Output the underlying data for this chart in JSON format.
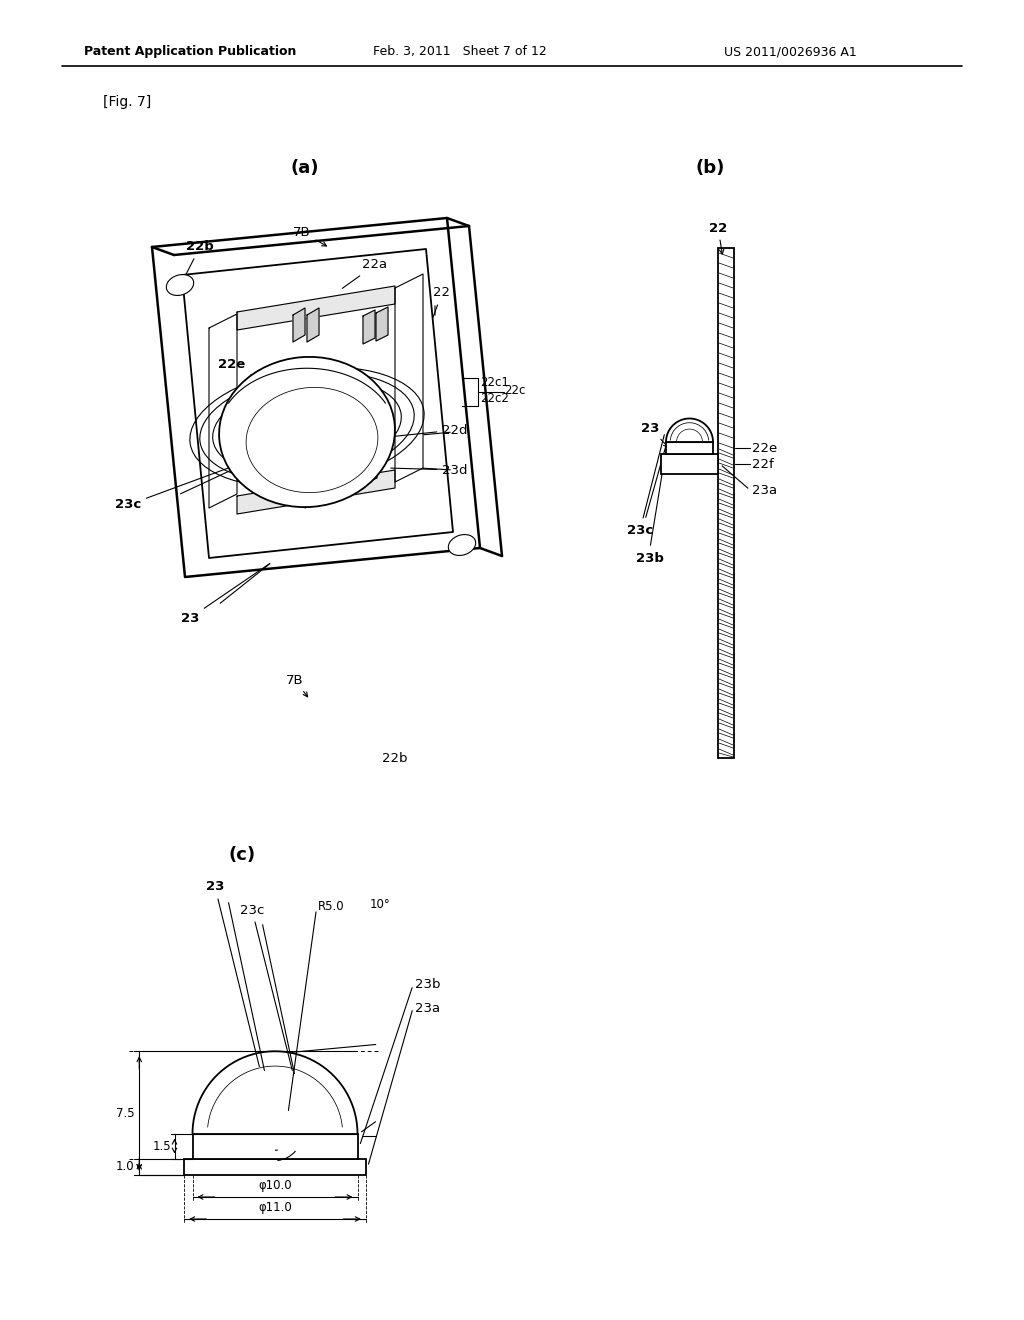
{
  "bg_color": "#ffffff",
  "text_color": "#000000",
  "line_color": "#000000",
  "header_left": "Patent Application Publication",
  "header_mid": "Feb. 3, 2011   Sheet 7 of 12",
  "header_right": "US 2011/0026936 A1",
  "fig_label": "[Fig. 7]",
  "sub_a": "(a)",
  "sub_b": "(b)",
  "sub_c": "(c)",
  "label_22b_top": "22b",
  "label_7B_top": "7B",
  "label_22a": "22a",
  "label_22": "22",
  "label_22e": "22e",
  "label_22c1": "22c1",
  "label_22c2": "22c2",
  "label_22c": "22c",
  "label_22d": "22d",
  "label_23d": "23d",
  "label_23c_a": "23c",
  "label_23_a": "23",
  "label_7B_bot": "7B",
  "label_22b_bot": "22b",
  "label_22_b": "22",
  "label_23_b": "23",
  "label_22e_b": "22e",
  "label_22f_b": "22f",
  "label_23a_b": "23a",
  "label_23c_b": "23c",
  "label_23b_b": "23b",
  "label_23_c": "23",
  "label_23c_c": "23c",
  "label_R50": "R5.0",
  "label_10deg": "10°",
  "label_75": "7.5",
  "label_15": "1.5",
  "label_10": "1.0",
  "label_phi100": "φ10.0",
  "label_phi110": "φ11.0",
  "label_23b_c": "23b",
  "label_23a_c": "23a"
}
